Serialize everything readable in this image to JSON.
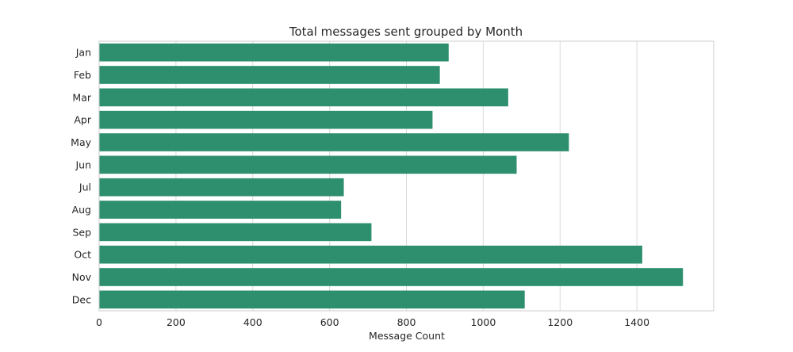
{
  "chart_data": {
    "type": "bar",
    "orientation": "horizontal",
    "title": "Total messages sent grouped by Month",
    "xlabel": "Message Count",
    "ylabel": "",
    "categories": [
      "Jan",
      "Feb",
      "Mar",
      "Apr",
      "May",
      "Jun",
      "Jul",
      "Aug",
      "Sep",
      "Oct",
      "Nov",
      "Dec"
    ],
    "values": [
      910,
      887,
      1065,
      868,
      1223,
      1087,
      637,
      630,
      709,
      1414,
      1520,
      1108
    ],
    "xlim": [
      0,
      1600
    ],
    "xticks": [
      0,
      200,
      400,
      600,
      800,
      1000,
      1200,
      1400
    ],
    "grid": true,
    "bar_color": "#2e8f6e",
    "grid_color": "#d9d9d9",
    "spine_color": "#cccccc"
  }
}
